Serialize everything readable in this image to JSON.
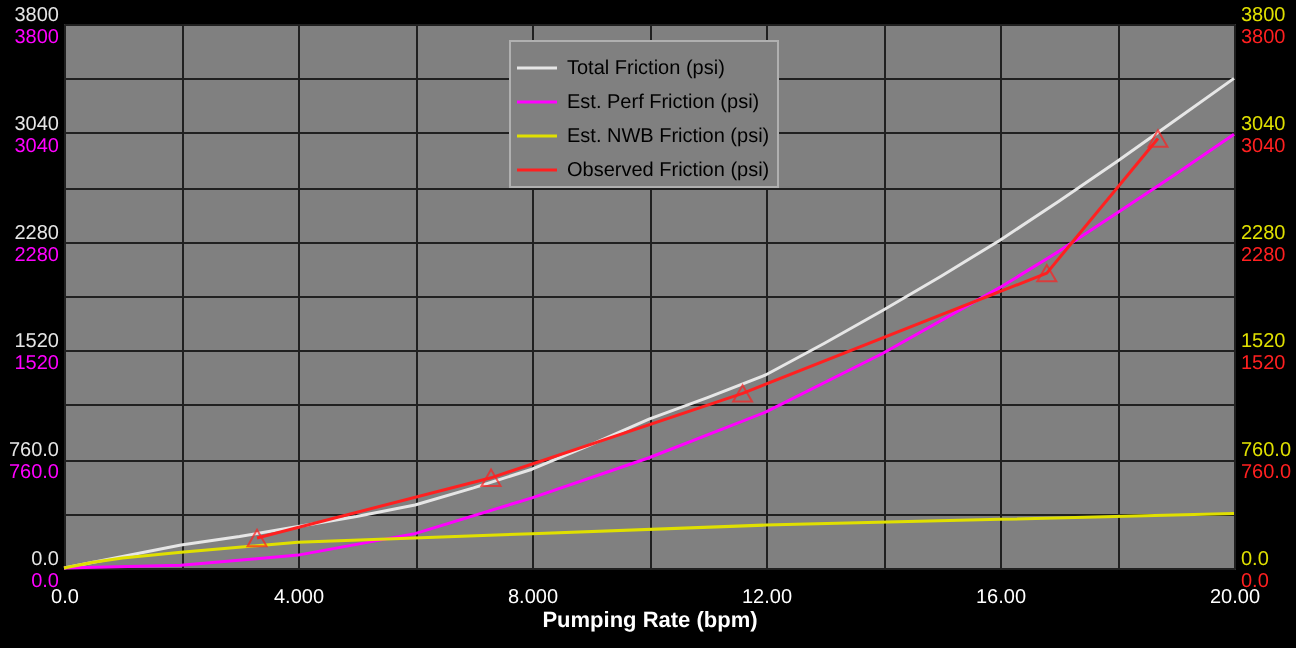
{
  "chart_data": {
    "type": "line",
    "xlabel": "Pumping Rate (bpm)",
    "xlim": [
      0,
      20
    ],
    "xticks": [
      {
        "value": 0,
        "label": "0.0"
      },
      {
        "value": 2,
        "label": null
      },
      {
        "value": 4,
        "label": "4.000"
      },
      {
        "value": 6,
        "label": null
      },
      {
        "value": 8,
        "label": "8.000"
      },
      {
        "value": 10,
        "label": null
      },
      {
        "value": 12,
        "label": "12.00"
      },
      {
        "value": 14,
        "label": null
      },
      {
        "value": 16,
        "label": "16.00"
      },
      {
        "value": 18,
        "label": null
      },
      {
        "value": 20,
        "label": "20.00"
      }
    ],
    "ylim": [
      0,
      3800
    ],
    "yticks": [
      {
        "value": 0,
        "label": "0.0"
      },
      {
        "value": 380,
        "label": null
      },
      {
        "value": 760,
        "label": "760.0"
      },
      {
        "value": 1140,
        "label": null
      },
      {
        "value": 1520,
        "label": "1520"
      },
      {
        "value": 1900,
        "label": null
      },
      {
        "value": 2280,
        "label": "2280"
      },
      {
        "value": 2660,
        "label": null
      },
      {
        "value": 3040,
        "label": "3040"
      },
      {
        "value": 3420,
        "label": null
      },
      {
        "value": 3800,
        "label": "3800"
      }
    ],
    "y2lim": [
      0,
      3800
    ],
    "y2ticks": [
      {
        "value": 0,
        "label": "0.0"
      },
      {
        "value": 380,
        "label": null
      },
      {
        "value": 760,
        "label": "760.0"
      },
      {
        "value": 1140,
        "label": null
      },
      {
        "value": 1520,
        "label": "1520"
      },
      {
        "value": 1900,
        "label": null
      },
      {
        "value": 2280,
        "label": "2280"
      },
      {
        "value": 2660,
        "label": null
      },
      {
        "value": 3040,
        "label": "3040"
      },
      {
        "value": 3420,
        "label": null
      },
      {
        "value": 3800,
        "label": "3800"
      }
    ],
    "y3lim": [
      0,
      3800
    ],
    "y3ticks": [
      {
        "value": 0,
        "label": "0.0"
      },
      {
        "value": 380,
        "label": null
      },
      {
        "value": 760,
        "label": "760.0"
      },
      {
        "value": 1140,
        "label": null
      },
      {
        "value": 1520,
        "label": "1520"
      },
      {
        "value": 1900,
        "label": null
      },
      {
        "value": 2280,
        "label": "2280"
      },
      {
        "value": 2660,
        "label": null
      },
      {
        "value": 3040,
        "label": "3040"
      },
      {
        "value": 3420,
        "label": null
      },
      {
        "value": 3800,
        "label": "3800"
      }
    ],
    "grid": true,
    "legend": "top",
    "line_style": "solid",
    "series": [
      {
        "name": "Total Friction (psi)",
        "color": "#e6e6e6",
        "marker": "none",
        "x": [
          0,
          1,
          2,
          3,
          4,
          5,
          6,
          7,
          8,
          9,
          10,
          11,
          12,
          13,
          14,
          15,
          16,
          17,
          18,
          19,
          20
        ],
        "values": [
          0,
          80,
          160,
          220,
          290,
          360,
          440,
          560,
          690,
          860,
          1040,
          1190,
          1350,
          1570,
          1800,
          2040,
          2290,
          2560,
          2840,
          3130,
          3420
        ]
      },
      {
        "name": "Est. Perf Friction (psi)",
        "color": "#ff00ff",
        "marker": "none",
        "axis": "y3",
        "x": [
          0,
          2,
          4,
          6,
          8,
          10,
          12,
          14,
          16,
          17,
          18,
          19,
          20
        ],
        "values": [
          0,
          20,
          90,
          240,
          490,
          770,
          1090,
          1500,
          1960,
          2210,
          2480,
          2750,
          3030
        ]
      },
      {
        "name": "Est. NWB Friction (psi)",
        "color": "#e0e000",
        "marker": "none",
        "axis": "y2",
        "x": [
          0,
          0.5,
          1,
          2,
          4,
          8,
          12,
          16,
          20
        ],
        "values": [
          0,
          40,
          70,
          110,
          180,
          240,
          300,
          340,
          380
        ]
      },
      {
        "name": "Observed Friction (psi)",
        "color": "#ff2020",
        "marker": "triangle",
        "axis": "y2",
        "x": [
          3.3,
          7.3,
          11.6,
          16.8,
          18.7
        ],
        "values": [
          210,
          630,
          1220,
          2060,
          3000
        ]
      }
    ]
  }
}
